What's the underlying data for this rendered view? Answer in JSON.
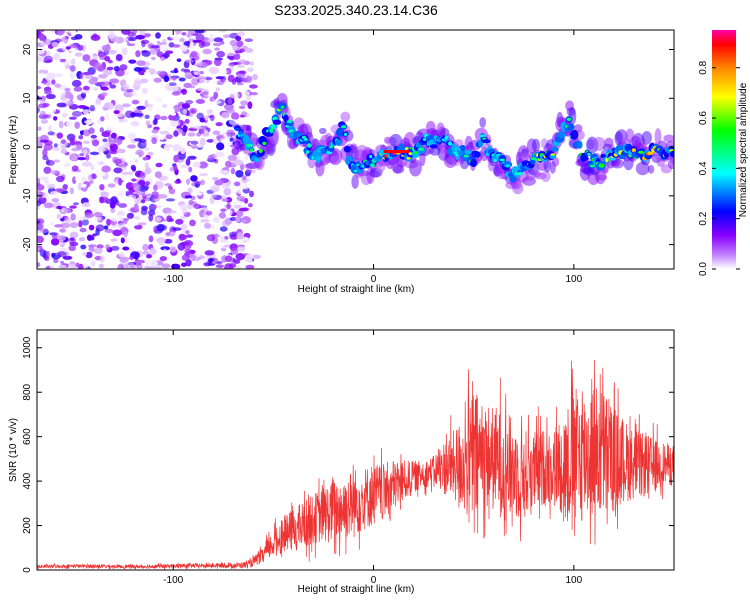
{
  "figure_title": "S233.2025.340.23.14.C36",
  "chart_data": [
    {
      "type": "heatmap",
      "title": "S233.2025.340.23.14.C36",
      "xlabel": "Height of straight line (km)",
      "ylabel": "Frequency (Hz)",
      "xlim": [
        -168,
        150
      ],
      "ylim": [
        -25,
        24
      ],
      "xticks": [
        -100,
        0,
        100
      ],
      "xtick_labels": [
        "-100",
        "0",
        "100"
      ],
      "yticks": [
        -20,
        -10,
        0,
        10,
        20
      ],
      "ytick_labels": [
        "-20",
        "-10",
        "0",
        "10",
        "20"
      ],
      "colorbar": {
        "label": "Normalized spectral amplitude",
        "range": [
          0.0,
          0.95
        ],
        "ticks": [
          0.0,
          0.2,
          0.4,
          0.6,
          0.8
        ],
        "tick_labels": [
          "0.0",
          "0.2",
          "0.4",
          "0.6",
          "0.8"
        ],
        "colormap": [
          "#ffffff",
          "#8800ff",
          "#0000ff",
          "#00ffff",
          "#00ff00",
          "#ffff00",
          "#ff8800",
          "#ff0000",
          "#ff00aa"
        ]
      },
      "noise_region_x": [
        -168,
        -64
      ],
      "ridge": {
        "x": [
          -68,
          -62,
          -58,
          -54,
          -50,
          -46,
          -42,
          -38,
          -34,
          -30,
          -26,
          -22,
          -18,
          -15,
          -12,
          -8,
          -4,
          0,
          4,
          8,
          12,
          16,
          20,
          24,
          26,
          30,
          34,
          38,
          42,
          46,
          50,
          54,
          58,
          62,
          66,
          70,
          74,
          78,
          82,
          86,
          90,
          94,
          98,
          102,
          106,
          110,
          114,
          118,
          122,
          126,
          130,
          134,
          138,
          142,
          146,
          150
        ],
        "freq": [
          3,
          0,
          -2,
          2,
          4,
          8,
          4,
          2,
          1,
          -2,
          -1,
          0,
          1,
          5,
          -3,
          -4,
          -3,
          -3,
          -2,
          -1,
          -1,
          -1,
          -1,
          0,
          2,
          1,
          2,
          0,
          -1,
          -1,
          -3,
          2,
          -1,
          -2,
          -4,
          -6,
          -4,
          -3,
          -2,
          -2,
          -1,
          3,
          5,
          0,
          -2,
          -3,
          -3,
          -2,
          -1,
          -1,
          -1,
          -2,
          -1,
          -1,
          -1,
          -1
        ],
        "strength": [
          0.35,
          0.5,
          0.55,
          0.6,
          0.55,
          0.65,
          0.5,
          0.5,
          0.45,
          0.5,
          0.45,
          0.5,
          0.55,
          0.5,
          0.45,
          0.45,
          0.5,
          0.55,
          0.85,
          0.95,
          0.95,
          0.9,
          0.6,
          0.5,
          0.5,
          0.45,
          0.5,
          0.45,
          0.45,
          0.5,
          0.55,
          0.5,
          0.45,
          0.45,
          0.5,
          0.5,
          0.5,
          0.6,
          0.7,
          0.75,
          0.8,
          0.6,
          0.55,
          0.6,
          0.55,
          0.6,
          0.6,
          0.75,
          0.85,
          0.85,
          0.8,
          0.8,
          0.85,
          0.85,
          0.8,
          0.75
        ]
      }
    },
    {
      "type": "line",
      "xlabel": "Height of straight line (km)",
      "ylabel": "SNR (10 * v/v)",
      "xlim": [
        -168,
        150
      ],
      "ylim": [
        0,
        1080
      ],
      "xticks": [
        -100,
        0,
        100
      ],
      "xtick_labels": [
        "-100",
        "0",
        "100"
      ],
      "yticks": [
        0,
        200,
        400,
        600,
        800,
        1000
      ],
      "ytick_labels": [
        "0",
        "200",
        "400",
        "600",
        "800",
        "1000"
      ],
      "series": [
        {
          "name": "SNR",
          "color": "#ee3333",
          "envelope_x": [
            -168,
            -150,
            -120,
            -100,
            -80,
            -70,
            -62,
            -56,
            -50,
            -45,
            -40,
            -35,
            -30,
            -25,
            -20,
            -15,
            -10,
            -5,
            0,
            5,
            10,
            15,
            20,
            25,
            30,
            35,
            40,
            45,
            50,
            55,
            60,
            65,
            70,
            75,
            80,
            85,
            90,
            95,
            100,
            105,
            110,
            115,
            120,
            125,
            130,
            135,
            140,
            145,
            150
          ],
          "envelope_mean": [
            15,
            18,
            15,
            18,
            20,
            20,
            25,
            60,
            120,
            160,
            180,
            200,
            230,
            250,
            260,
            280,
            300,
            320,
            340,
            350,
            380,
            400,
            420,
            430,
            450,
            460,
            470,
            480,
            500,
            520,
            500,
            480,
            450,
            430,
            440,
            460,
            470,
            480,
            500,
            520,
            540,
            520,
            500,
            490,
            480,
            470,
            470,
            480,
            470
          ],
          "envelope_amp": [
            10,
            10,
            10,
            12,
            12,
            14,
            20,
            40,
            80,
            100,
            120,
            140,
            140,
            160,
            180,
            180,
            200,
            180,
            180,
            160,
            150,
            120,
            90,
            80,
            80,
            150,
            200,
            280,
            400,
            300,
            300,
            320,
            280,
            260,
            240,
            220,
            220,
            300,
            400,
            380,
            380,
            380,
            300,
            240,
            200,
            180,
            160,
            120,
            120
          ]
        }
      ]
    }
  ]
}
